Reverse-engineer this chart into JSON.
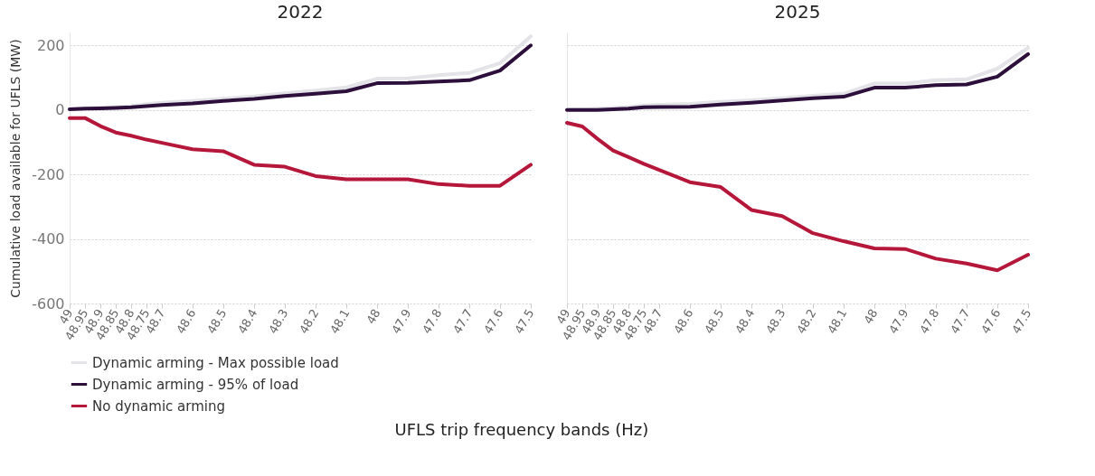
{
  "chart_data": [
    {
      "type": "line",
      "title": "2022",
      "ylabel": "Cumulative load available for UFLS (MW)",
      "xlabel": "UFLS trip frequency bands (Hz)",
      "x": [
        49,
        48.95,
        48.9,
        48.85,
        48.8,
        48.75,
        48.7,
        48.6,
        48.5,
        48.4,
        48.3,
        48.2,
        48.1,
        48,
        47.9,
        47.8,
        47.7,
        47.6,
        47.5
      ],
      "xlim": [
        49,
        47.5
      ],
      "xticks": [
        49,
        48.95,
        48.9,
        48.85,
        48.8,
        48.75,
        48.7,
        48.6,
        48.5,
        48.4,
        48.3,
        48.2,
        48.1,
        48,
        47.9,
        47.8,
        47.7,
        47.6,
        47.5
      ],
      "ylim": [
        -600,
        240
      ],
      "yticks": [
        -600,
        -400,
        -200,
        0,
        200
      ],
      "grid": "y",
      "legend": "bottom",
      "line_style": "solid",
      "series": [
        {
          "name": "Dynamic arming - Max possible load",
          "color": "#e4e4e8",
          "values": [
            3,
            5,
            7,
            9,
            12,
            18,
            22,
            28,
            35,
            42,
            52,
            60,
            70,
            97,
            98,
            108,
            115,
            145,
            228
          ]
        },
        {
          "name": "Dynamic arming - 95% of load",
          "color": "#2d0f3c",
          "values": [
            2,
            4,
            5,
            6,
            8,
            12,
            15,
            20,
            28,
            34,
            43,
            50,
            58,
            83,
            84,
            88,
            92,
            122,
            200
          ]
        },
        {
          "name": "No dynamic arming",
          "color": "#b5173a",
          "values": [
            -25,
            -25,
            -50,
            -70,
            -80,
            -92,
            -102,
            -122,
            -128,
            -170,
            -176,
            -205,
            -215,
            -215,
            -215,
            -230,
            -235,
            -235,
            -170
          ]
        }
      ]
    },
    {
      "type": "line",
      "title": "2025",
      "tick_labels": "x",
      "x": [
        49,
        48.95,
        48.9,
        48.85,
        48.8,
        48.75,
        48.7,
        48.6,
        48.5,
        48.4,
        48.3,
        48.2,
        48.1,
        48,
        47.9,
        47.8,
        47.7,
        47.6,
        47.5
      ],
      "xlim": [
        49,
        47.5
      ],
      "xticks": [
        49,
        48.95,
        48.9,
        48.85,
        48.8,
        48.75,
        48.7,
        48.6,
        48.5,
        48.4,
        48.3,
        48.2,
        48.1,
        48,
        47.9,
        47.8,
        47.7,
        47.6,
        47.5
      ],
      "ylim": [
        -600,
        240
      ],
      "yticks": [
        -600,
        -400,
        -200,
        0,
        200
      ],
      "grid": "y",
      "line_style": "solid",
      "series": [
        {
          "name": "Dynamic arming - Max possible load",
          "color": "#e4e4e8",
          "values": [
            1,
            2,
            4,
            6,
            9,
            14,
            16,
            19,
            25,
            30,
            36,
            44,
            50,
            82,
            82,
            92,
            95,
            128,
            193
          ]
        },
        {
          "name": "Dynamic arming - 95% of load",
          "color": "#2d0f3c",
          "values": [
            0,
            0,
            0,
            2,
            4,
            8,
            9,
            10,
            17,
            22,
            29,
            36,
            41,
            69,
            69,
            77,
            79,
            103,
            173
          ]
        },
        {
          "name": "No dynamic arming",
          "color": "#b5173a",
          "values": [
            -40,
            -51,
            -90,
            -126,
            -146,
            -167,
            -186,
            -224,
            -239,
            -310,
            -329,
            -382,
            -407,
            -429,
            -431,
            -461,
            -476,
            -497,
            -449
          ]
        }
      ]
    }
  ]
}
